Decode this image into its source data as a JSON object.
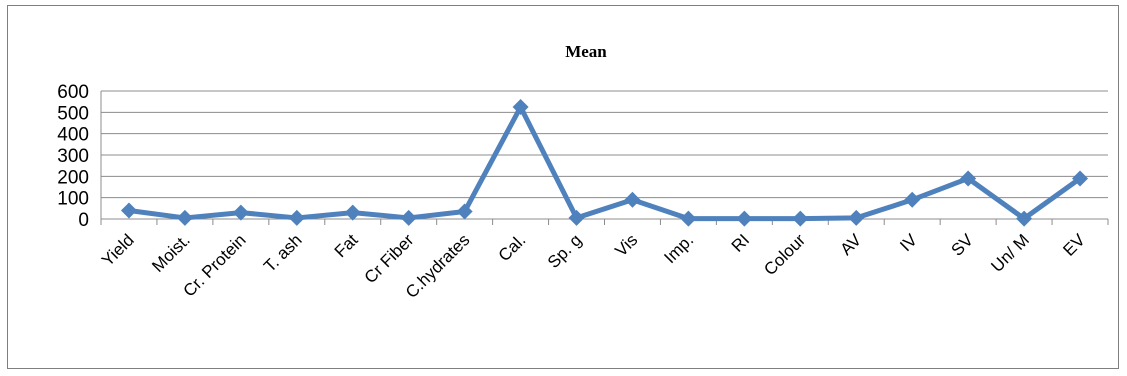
{
  "chart_data": {
    "type": "line",
    "title": "Mean",
    "xlabel": "",
    "ylabel": "",
    "ylim": [
      0,
      600
    ],
    "yticks": [
      0,
      100,
      200,
      300,
      400,
      500,
      600
    ],
    "grid": true,
    "legend": "none",
    "categories": [
      "Yield",
      "Moist.",
      "Cr. Protein",
      "T. ash",
      "Fat",
      "Cr Fiber",
      "C.hydrates",
      "Cal.",
      "Sp. g",
      "Vis",
      "Imp.",
      "RI",
      "Colour",
      "AV",
      "IV",
      "SV",
      "Un/ M",
      "EV"
    ],
    "series": [
      {
        "color": "#4f81bd",
        "values": [
          40,
          5,
          30,
          5,
          30,
          5,
          35,
          525,
          5,
          90,
          2,
          2,
          2,
          5,
          90,
          190,
          2,
          190
        ]
      }
    ]
  }
}
